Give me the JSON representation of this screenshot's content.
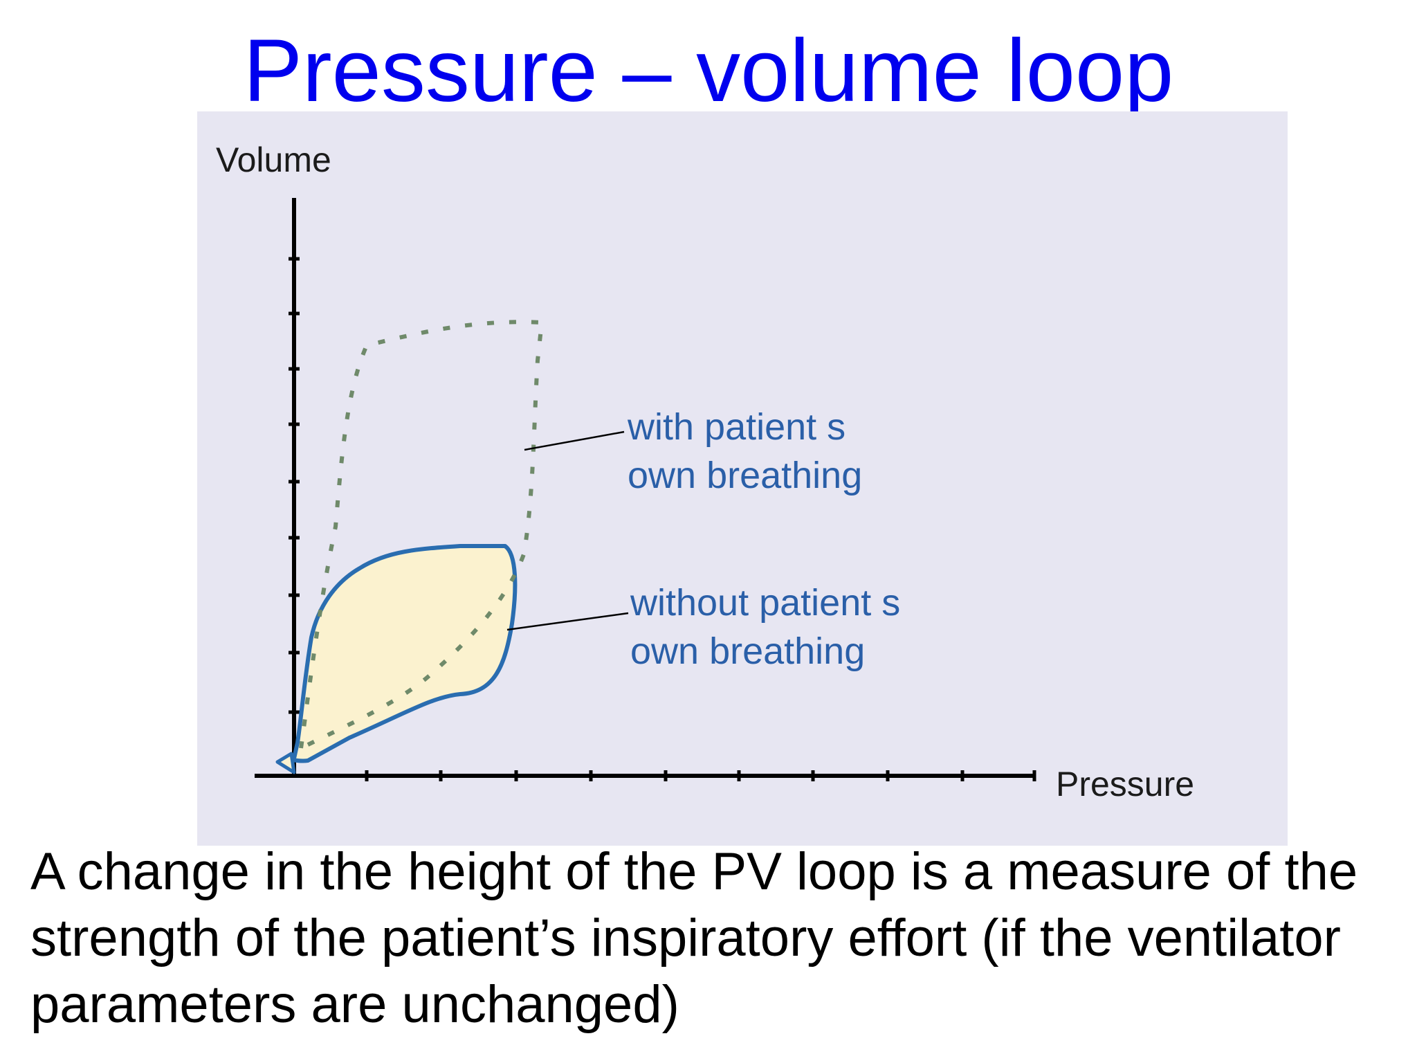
{
  "slide": {
    "title": "Pressure – volume loop",
    "caption": "A change in the height of the PV loop is a measure of the strength of the patient’s inspiratory effort (if the ventilator parameters are unchanged)"
  },
  "diagram": {
    "axes": {
      "y_label": "Volume",
      "x_label": "Pressure"
    },
    "loops": [
      {
        "label_line1": "with patient  s",
        "label_line2": "own breathing",
        "style": "dashed",
        "color": "#6f8a6a"
      },
      {
        "label_line1": "without patient  s",
        "label_line2": "own breathing",
        "style": "solid",
        "stroke": "#2a6db0",
        "fill": "#fbf2cf"
      }
    ],
    "colors": {
      "panel": "#e7e6f2",
      "title": "#0000ee",
      "annotation": "#2a5fa8"
    }
  }
}
